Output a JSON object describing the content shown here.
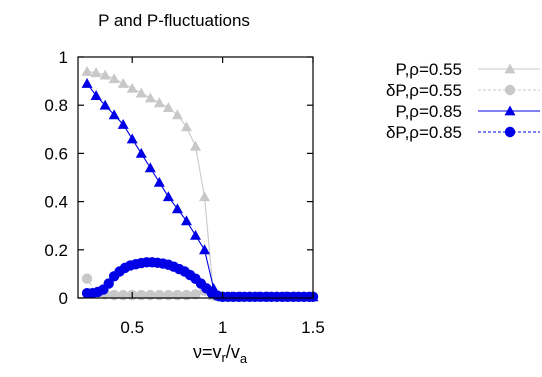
{
  "chart_data": {
    "type": "line",
    "title": "P and P-fluctuations",
    "xlabel": {
      "nu": "ν",
      "eq": "=",
      "v1": "v",
      "sub1": "r",
      "slash": "/",
      "v2": "v",
      "sub2": "a"
    },
    "xlim": [
      0.2,
      1.5
    ],
    "ylim": [
      0,
      1
    ],
    "xticks": [
      0.5,
      1,
      1.5
    ],
    "xtick_labels": [
      "0.5",
      "1",
      "1.5"
    ],
    "yticks": [
      0,
      0.2,
      0.4,
      0.6,
      0.8,
      1
    ],
    "ytick_labels": [
      "0",
      "0.2",
      "0.4",
      "0.6",
      "0.8",
      "1"
    ],
    "grid": false,
    "legend_position": "outside-right",
    "series": [
      {
        "name": "P,ρ=0.55",
        "color": "#c8c8c8",
        "marker": "triangle",
        "line": "solid",
        "x": [
          0.25,
          0.3,
          0.35,
          0.4,
          0.45,
          0.5,
          0.55,
          0.6,
          0.65,
          0.7,
          0.75,
          0.8,
          0.85,
          0.9,
          0.95,
          1.0,
          1.05,
          1.1,
          1.15,
          1.2,
          1.25,
          1.3,
          1.35,
          1.4,
          1.45,
          1.5
        ],
        "y": [
          0.94,
          0.935,
          0.925,
          0.91,
          0.89,
          0.87,
          0.85,
          0.83,
          0.81,
          0.79,
          0.76,
          0.71,
          0.63,
          0.42,
          0.01,
          0.005,
          0.005,
          0.005,
          0.005,
          0.005,
          0.005,
          0.005,
          0.005,
          0.005,
          0.005,
          0.005
        ]
      },
      {
        "name": "δP,ρ=0.55",
        "color": "#c8c8c8",
        "marker": "circle",
        "line": "dashed",
        "x": [
          0.25,
          0.3,
          0.35,
          0.4,
          0.45,
          0.5,
          0.55,
          0.6,
          0.65,
          0.7,
          0.75,
          0.8,
          0.85,
          0.9,
          0.95,
          1.0,
          1.05,
          1.1,
          1.15,
          1.2,
          1.25,
          1.3,
          1.35,
          1.4,
          1.45,
          1.5
        ],
        "y": [
          0.08,
          0.02,
          0.015,
          0.012,
          0.012,
          0.012,
          0.012,
          0.012,
          0.012,
          0.012,
          0.012,
          0.012,
          0.015,
          0.03,
          0.01,
          0.005,
          0.005,
          0.005,
          0.005,
          0.005,
          0.005,
          0.005,
          0.005,
          0.005,
          0.005,
          0.005
        ]
      },
      {
        "name": "P,ρ=0.85",
        "color": "#0000e6",
        "marker": "triangle",
        "line": "solid",
        "x": [
          0.25,
          0.3,
          0.35,
          0.4,
          0.45,
          0.5,
          0.55,
          0.6,
          0.65,
          0.7,
          0.75,
          0.8,
          0.85,
          0.9,
          0.95,
          1.0,
          1.05,
          1.1,
          1.15,
          1.2,
          1.25,
          1.3,
          1.35,
          1.4,
          1.45,
          1.5
        ],
        "y": [
          0.89,
          0.84,
          0.8,
          0.76,
          0.72,
          0.66,
          0.6,
          0.54,
          0.48,
          0.42,
          0.37,
          0.32,
          0.26,
          0.2,
          0.04,
          0.005,
          0.005,
          0.005,
          0.005,
          0.005,
          0.005,
          0.005,
          0.005,
          0.005,
          0.005,
          0.005
        ]
      },
      {
        "name": "δP,ρ=0.85",
        "color": "#0000e6",
        "marker": "circle",
        "line": "dashed",
        "x": [
          0.25,
          0.28,
          0.31,
          0.34,
          0.37,
          0.4,
          0.43,
          0.46,
          0.49,
          0.52,
          0.55,
          0.58,
          0.61,
          0.64,
          0.67,
          0.7,
          0.73,
          0.76,
          0.79,
          0.82,
          0.85,
          0.88,
          0.91,
          0.94,
          0.97,
          1.0,
          1.03,
          1.06,
          1.09,
          1.12,
          1.15,
          1.18,
          1.21,
          1.24,
          1.27,
          1.3,
          1.33,
          1.36,
          1.39,
          1.42,
          1.45,
          1.48,
          1.5
        ],
        "y": [
          0.02,
          0.02,
          0.025,
          0.035,
          0.06,
          0.09,
          0.11,
          0.125,
          0.135,
          0.14,
          0.145,
          0.148,
          0.148,
          0.146,
          0.143,
          0.138,
          0.13,
          0.12,
          0.11,
          0.095,
          0.08,
          0.06,
          0.04,
          0.02,
          0.01,
          0.005,
          0.005,
          0.005,
          0.005,
          0.005,
          0.005,
          0.005,
          0.005,
          0.005,
          0.005,
          0.005,
          0.005,
          0.005,
          0.005,
          0.005,
          0.005,
          0.005,
          0.005
        ]
      }
    ]
  }
}
